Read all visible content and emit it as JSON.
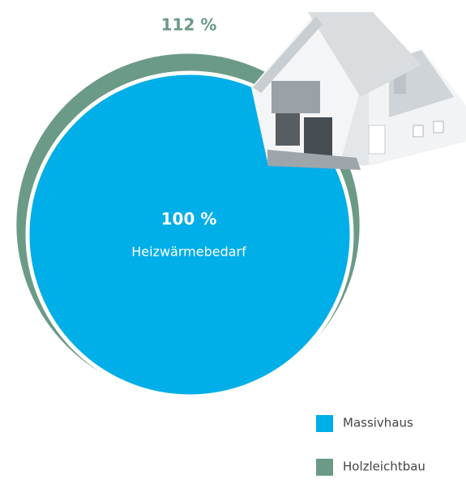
{
  "chart_data": {
    "type": "circle",
    "categories": [
      "Massivhaus",
      "Holzleichtbau"
    ],
    "values": [
      100,
      112
    ],
    "value_labels": [
      "100 %",
      "112 %"
    ],
    "colors": [
      "#00aee8",
      "#6b9a86"
    ],
    "annotation": "Heizwärmebedarf"
  }
}
